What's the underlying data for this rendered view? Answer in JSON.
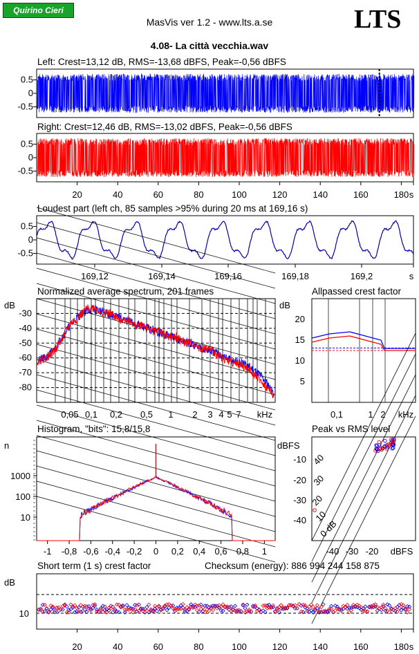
{
  "header": {
    "badge": "Quirino Cieri",
    "app": "MasVis ver 1.2 - www.lts.a.se",
    "logo": "LTS",
    "file": "4.08- La città vecchia.wav"
  },
  "chart_data": [
    {
      "type": "line",
      "id": "left",
      "title": "Left: Crest=13,12 dB, RMS=-13,68 dBFS, Peak=-0,56 dBFS",
      "yticks": [
        "0.5",
        "0",
        "-0.5"
      ],
      "ylim": [
        -0.9,
        0.9
      ],
      "color": "#0000ff",
      "marker_x": 169.16
    },
    {
      "type": "line",
      "id": "right",
      "title": "Right: Crest=12,46 dB, RMS=-13,02 dBFS, Peak=-0,56 dBFS",
      "yticks": [
        "0.5",
        "0",
        "-0.5"
      ],
      "ylim": [
        -0.9,
        0.9
      ],
      "color": "#ff0000",
      "xticks": [
        "20",
        "40",
        "60",
        "80",
        "100",
        "120",
        "140",
        "160",
        "180",
        "s"
      ],
      "xlim": [
        0,
        186
      ]
    },
    {
      "type": "line",
      "id": "loudest",
      "title": "Loudest part (left  ch, 85 samples >95% during 20 ms at 169,16 s)",
      "yticks": [
        "0.5",
        "0",
        "-0.5"
      ],
      "xticks": [
        "169,12",
        "169,14",
        "169,16",
        "169,18",
        "169,2",
        "s"
      ],
      "xlim": [
        169.106,
        169.206
      ],
      "color": "#0000aa"
    },
    {
      "type": "line",
      "id": "spectrum",
      "title": "Normalized average spectrum, 201 frames",
      "ylabel": "dB",
      "yticks": [
        "-30",
        "-40",
        "-50",
        "-60",
        "-70",
        "-80"
      ],
      "ylim": [
        -90,
        -20
      ],
      "xticks": [
        "0,05",
        "0,1",
        "0,2",
        "0,5",
        "1",
        "2",
        "3",
        "4",
        "5",
        "7",
        "kHz"
      ],
      "series": [
        {
          "color": "#0000ff",
          "values": [
            -62,
            -60,
            -55,
            -46,
            -38,
            -32,
            -28,
            -27,
            -29,
            -31,
            -33,
            -35,
            -37,
            -39,
            -41,
            -43,
            -45,
            -47,
            -49,
            -51,
            -53,
            -55,
            -57,
            -60,
            -62,
            -64,
            -66,
            -70,
            -76,
            -85
          ]
        },
        {
          "color": "#ff0000",
          "values": [
            -62,
            -60,
            -56,
            -47,
            -37,
            -33,
            -27,
            -26,
            -30,
            -30,
            -34,
            -34,
            -38,
            -38,
            -42,
            -42,
            -46,
            -46,
            -50,
            -50,
            -54,
            -54,
            -58,
            -61,
            -63,
            -65,
            -68,
            -73,
            -80,
            -86
          ]
        }
      ]
    },
    {
      "type": "line",
      "id": "allpass",
      "title": "Allpassed crest factor",
      "ylabel": "dB",
      "yticks": [
        "20",
        "15",
        "10",
        "5"
      ],
      "ylim": [
        0,
        25
      ],
      "xticks": [
        "0,1",
        "1",
        "2",
        "kHz"
      ],
      "series": [
        {
          "color": "#0000ff",
          "values": [
            15.5,
            16.5,
            17,
            15,
            13,
            13
          ]
        },
        {
          "color": "#ff0000",
          "values": [
            14.5,
            15.5,
            16,
            14,
            12.5,
            12.5
          ]
        }
      ],
      "ref_blue": 13.1,
      "ref_red": 12.5
    },
    {
      "type": "line",
      "id": "histogram",
      "title": "Histogram, \"bits\": 15,8/15,8",
      "ylabel": "n",
      "yticks": [
        "1000",
        "100",
        "10"
      ],
      "xticks": [
        "-1",
        "-0,8",
        "-0,6",
        "-0,4",
        "-0,2",
        "0",
        "0,2",
        "0,4",
        "0,6",
        "0,8",
        "1"
      ],
      "xlim": [
        -1.1,
        1.1
      ]
    },
    {
      "type": "scatter",
      "id": "peakrms",
      "title": "Peak vs RMS level",
      "ylabel": "dBFS",
      "yticks": [
        "-10",
        "-20",
        "-30",
        "-40"
      ],
      "xticks": [
        "-40",
        "-30",
        "-20",
        "dBFS"
      ],
      "diag_labels": [
        "40",
        "30",
        "20",
        "10",
        "0 dB"
      ]
    },
    {
      "type": "scatter",
      "id": "shortcrest",
      "title": "Short term (1 s) crest factor",
      "ylabel": "dB",
      "checksum": "Checksum (energy):   886 994 244 158 875",
      "yticks": [
        "10"
      ],
      "xticks": [
        "20",
        "40",
        "60",
        "80",
        "100",
        "120",
        "140",
        "160",
        "180",
        "s"
      ],
      "xlim": [
        0,
        186
      ]
    }
  ]
}
